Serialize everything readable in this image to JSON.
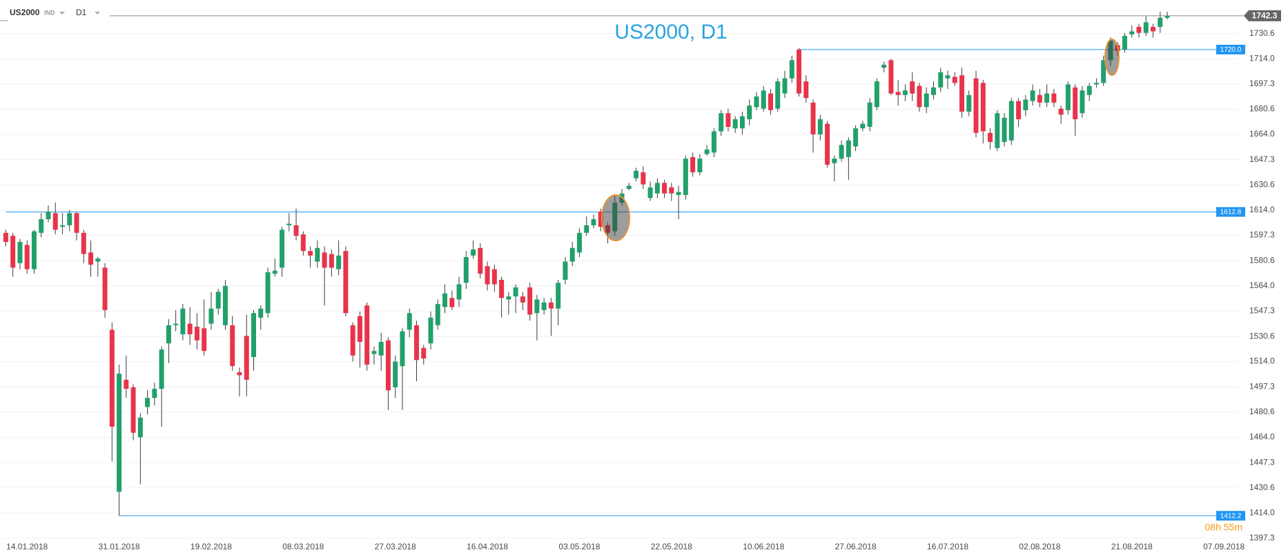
{
  "toolbar": {
    "symbol": "US2000",
    "market": "IND",
    "timeframe": "D1"
  },
  "chart_data": {
    "type": "candlestick",
    "title": "US2000, D1",
    "countdown": "08h 55m",
    "categories": [
      null,
      null,
      null,
      "14.01.2018",
      null,
      null,
      null,
      null,
      null,
      null,
      null,
      null,
      null,
      null,
      null,
      null,
      "31.01.2018",
      null,
      null,
      null,
      null,
      null,
      null,
      null,
      null,
      null,
      null,
      null,
      null,
      "19.02.2018",
      null,
      null,
      null,
      null,
      null,
      null,
      null,
      null,
      null,
      null,
      null,
      null,
      "08.03.2018",
      null,
      null,
      null,
      null,
      null,
      null,
      null,
      null,
      null,
      null,
      null,
      null,
      "27.03.2018",
      null,
      null,
      null,
      null,
      null,
      null,
      null,
      null,
      null,
      null,
      null,
      null,
      "16.04.2018",
      null,
      null,
      null,
      null,
      null,
      null,
      null,
      null,
      null,
      null,
      null,
      null,
      "03.05.2018",
      null,
      null,
      null,
      null,
      null,
      null,
      null,
      null,
      null,
      null,
      null,
      null,
      "22.05.2018",
      null,
      null,
      null,
      null,
      null,
      null,
      null,
      null,
      null,
      null,
      null,
      null,
      "10.06.2018",
      null,
      null,
      null,
      null,
      null,
      null,
      null,
      null,
      null,
      null,
      null,
      null,
      "27.06.2018",
      null,
      null,
      null,
      null,
      null,
      null,
      null,
      null,
      null,
      null,
      null,
      null,
      "16.07.2018",
      null,
      null,
      null,
      null,
      null,
      null,
      null,
      null,
      null,
      null,
      null,
      null,
      "02.08.2018",
      null,
      null,
      null,
      null,
      null,
      null,
      null,
      null,
      null,
      null,
      null,
      null,
      "21.08.2018",
      null,
      null,
      null,
      null,
      null,
      null,
      null,
      null,
      null,
      null,
      null,
      null,
      "07.09.2018"
    ],
    "open": [
      1599,
      1597,
      1579,
      1591,
      1575,
      1599,
      1608,
      1612,
      1603,
      1604,
      1612,
      1599,
      1586,
      1580,
      1576,
      1535,
      1428,
      1502,
      1497,
      1464,
      1484,
      1490,
      1496,
      1526,
      1538,
      1532,
      1539,
      1537,
      1536,
      1539,
      1549,
      1538,
      1538,
      1507,
      1531,
      1517,
      1543,
      1546,
      1572,
      1576,
      1604,
      1604,
      1598,
      1587,
      1580,
      1586,
      1585,
      1575,
      1587,
      1538,
      1544,
      1551,
      1519,
      1518,
      1528,
      1497,
      1511,
      1535,
      1538,
      1523,
      1526,
      1538,
      1550,
      1556,
      1555,
      1566,
      1584,
      1589,
      1577,
      1575,
      1568,
      1555,
      1557,
      1557,
      1563,
      1546,
      1548,
      1553,
      1549,
      1568,
      1580,
      1586,
      1599,
      1604,
      1613,
      1604,
      1600,
      1619,
      1628,
      1635,
      1639,
      1622,
      1625,
      1632,
      1629,
      1624,
      1624,
      1649,
      1639,
      1651,
      1652,
      1666,
      1678,
      1668,
      1668,
      1674,
      1682,
      1681,
      1691,
      1681,
      1691,
      1701,
      1720,
      1699,
      1685,
      1664,
      1671,
      1645,
      1648,
      1649,
      1656,
      1668,
      1669,
      1682,
      1708,
      1713,
      1692,
      1690,
      1699,
      1696,
      1682,
      1690,
      1695,
      1701,
      1702,
      1703,
      1679,
      1701,
      1698,
      1665,
      1655,
      1659,
      1660,
      1686,
      1680,
      1686,
      1690,
      1685,
      1691,
      1681,
      1680,
      1695,
      1678,
      1690,
      1697,
      1698,
      1713,
      1723,
      1720,
      1730,
      1735,
      1731,
      1735,
      1735,
      1741,
      null,
      null,
      null,
      null,
      null,
      null,
      null,
      null
    ],
    "high": [
      1601,
      1599,
      1595,
      1594,
      1601,
      1612,
      1617,
      1619,
      1612,
      1614,
      1613,
      1601,
      1594,
      1583,
      1579,
      1540,
      1512,
      1518,
      1499,
      1480,
      1495,
      1500,
      1524,
      1542,
      1548,
      1552,
      1550,
      1546,
      1555,
      1560,
      1562,
      1568,
      1544,
      1510,
      1545,
      1548,
      1551,
      1576,
      1582,
      1603,
      1612,
      1615,
      1600,
      1590,
      1594,
      1590,
      1588,
      1594,
      1590,
      1540,
      1547,
      1553,
      1524,
      1533,
      1530,
      1518,
      1536,
      1549,
      1541,
      1525,
      1547,
      1555,
      1565,
      1561,
      1570,
      1587,
      1594,
      1592,
      1580,
      1578,
      1570,
      1560,
      1565,
      1560,
      1566,
      1558,
      1556,
      1556,
      1568,
      1583,
      1593,
      1602,
      1610,
      1611,
      1615,
      1606,
      1624,
      1628,
      1632,
      1642,
      1643,
      1633,
      1635,
      1634,
      1632,
      1630,
      1650,
      1652,
      1651,
      1657,
      1668,
      1680,
      1681,
      1676,
      1679,
      1687,
      1692,
      1696,
      1694,
      1701,
      1706,
      1716,
      1721,
      1703,
      1687,
      1677,
      1673,
      1650,
      1660,
      1662,
      1670,
      1673,
      1688,
      1701,
      1712,
      1714,
      1700,
      1697,
      1705,
      1698,
      1695,
      1699,
      1708,
      1706,
      1705,
      1708,
      1693,
      1706,
      1700,
      1668,
      1680,
      1678,
      1688,
      1688,
      1690,
      1697,
      1694,
      1697,
      1694,
      1683,
      1699,
      1697,
      1696,
      1698,
      1701,
      1716,
      1728,
      1725,
      1731,
      1736,
      1737,
      1742,
      1737,
      1745,
      1745,
      null,
      null,
      null,
      null,
      null,
      null,
      null,
      null
    ],
    "low": [
      1590,
      1570,
      1575,
      1572,
      1572,
      1596,
      1606,
      1598,
      1598,
      1600,
      1594,
      1579,
      1570,
      1570,
      1543,
      1448,
      1412.2,
      1490,
      1462,
      1433,
      1479,
      1485,
      1471,
      1513,
      1534,
      1528,
      1525,
      1522,
      1518,
      1535,
      1545,
      1535,
      1508,
      1491,
      1491,
      1508,
      1535,
      1543,
      1570,
      1570,
      1600,
      1594,
      1584,
      1576,
      1576,
      1551,
      1570,
      1571,
      1544,
      1514,
      1510,
      1508,
      1512,
      1508,
      1482,
      1490,
      1482,
      1530,
      1501,
      1512,
      1522,
      1535,
      1546,
      1548,
      1550,
      1562,
      1582,
      1569,
      1561,
      1560,
      1543,
      1545,
      1546,
      1548,
      1541,
      1528,
      1545,
      1531,
      1538,
      1565,
      1577,
      1583,
      1597,
      1602,
      1600,
      1592,
      1597,
      1617,
      1627,
      1633,
      1628,
      1620,
      1622,
      1622,
      1620,
      1608,
      1621,
      1636,
      1637,
      1650,
      1649,
      1663,
      1666,
      1665,
      1664,
      1670,
      1680,
      1679,
      1677,
      1679,
      1688,
      1698,
      1689,
      1685,
      1652,
      1660,
      1642,
      1633,
      1646,
      1634,
      1653,
      1666,
      1666,
      1680,
      1705,
      1690,
      1683,
      1686,
      1686,
      1679,
      1678,
      1687,
      1692,
      1694,
      1696,
      1675,
      1676,
      1662,
      1658,
      1654,
      1653,
      1656,
      1657,
      1669,
      1676,
      1683,
      1682,
      1682,
      1682,
      1671,
      1677,
      1663,
      1675,
      1686,
      1695,
      1696,
      1709,
      1716,
      1718,
      1728,
      1728,
      1729,
      1728,
      1731,
      1740,
      null,
      null,
      null,
      null,
      null,
      null,
      null,
      null
    ],
    "close": [
      1593,
      1576,
      1593,
      1575,
      1600,
      1608,
      1613,
      1601,
      1604,
      1612,
      1599,
      1585,
      1578,
      1582,
      1548,
      1471,
      1506,
      1496,
      1467,
      1477,
      1490,
      1496,
      1522,
      1538,
      1539,
      1549,
      1532,
      1528,
      1521,
      1549,
      1560,
      1564,
      1511,
      1505,
      1502,
      1546,
      1549,
      1573,
      1574,
      1601,
      1605,
      1597,
      1587,
      1584,
      1589,
      1576,
      1576,
      1584,
      1546,
      1518,
      1527,
      1512,
      1521,
      1527,
      1495,
      1514,
      1534,
      1546,
      1515,
      1516,
      1543,
      1552,
      1559,
      1550,
      1565,
      1583,
      1588,
      1572,
      1565,
      1565,
      1556,
      1557,
      1563,
      1553,
      1545,
      1555,
      1553,
      1549,
      1566,
      1580,
      1589,
      1599,
      1604,
      1608,
      1603,
      1599,
      1619,
      1625,
      1630,
      1640,
      1631,
      1629,
      1632,
      1625,
      1625,
      1626,
      1648,
      1639,
      1648,
      1654,
      1666,
      1678,
      1669,
      1674,
      1676,
      1683,
      1689,
      1693,
      1680,
      1699,
      1701,
      1713,
      1691,
      1688,
      1664,
      1674,
      1644,
      1648,
      1657,
      1660,
      1668,
      1671,
      1685,
      1699,
      1710,
      1691,
      1690,
      1693,
      1691,
      1682,
      1691,
      1695,
      1705,
      1703,
      1698,
      1679,
      1690,
      1665,
      1666,
      1659,
      1678,
      1675,
      1686,
      1674,
      1687,
      1693,
      1685,
      1691,
      1685,
      1677,
      1697,
      1674,
      1693,
      1696,
      1698,
      1713,
      1726,
      1719,
      1729,
      1732,
      1731,
      1738,
      1732,
      1741,
      1742.3,
      null,
      null,
      null,
      null,
      null,
      null,
      null,
      null
    ],
    "up_color": "#22a06b",
    "down_color": "#e8344b",
    "wick_color": "#3a3a3a",
    "ylim": [
      1397.3,
      1750
    ],
    "yticks": [
      1397.3,
      {
        "value": 1414,
        "label": "1414.0"
      },
      1430.6,
      1447.3,
      {
        "value": 1464,
        "label": "1464.0"
      },
      1480.6,
      1497.3,
      {
        "value": 1514,
        "label": "1514.0"
      },
      1530.6,
      1547.3,
      {
        "value": 1564,
        "label": "1564.0"
      },
      1580.6,
      1597.3,
      {
        "value": 1614,
        "label": "1614.0"
      },
      1630.6,
      1647.3,
      {
        "value": 1664,
        "label": "1664.0"
      },
      1680.6,
      1697.3,
      {
        "value": 1714,
        "label": "1714.0"
      },
      1730.6
    ],
    "grid": true,
    "hline_color": "#2196f3",
    "hlines": [
      {
        "value": 1720,
        "label": "1720.0"
      },
      1612.8,
      1412.2
    ],
    "last_price": 1742.3
  }
}
